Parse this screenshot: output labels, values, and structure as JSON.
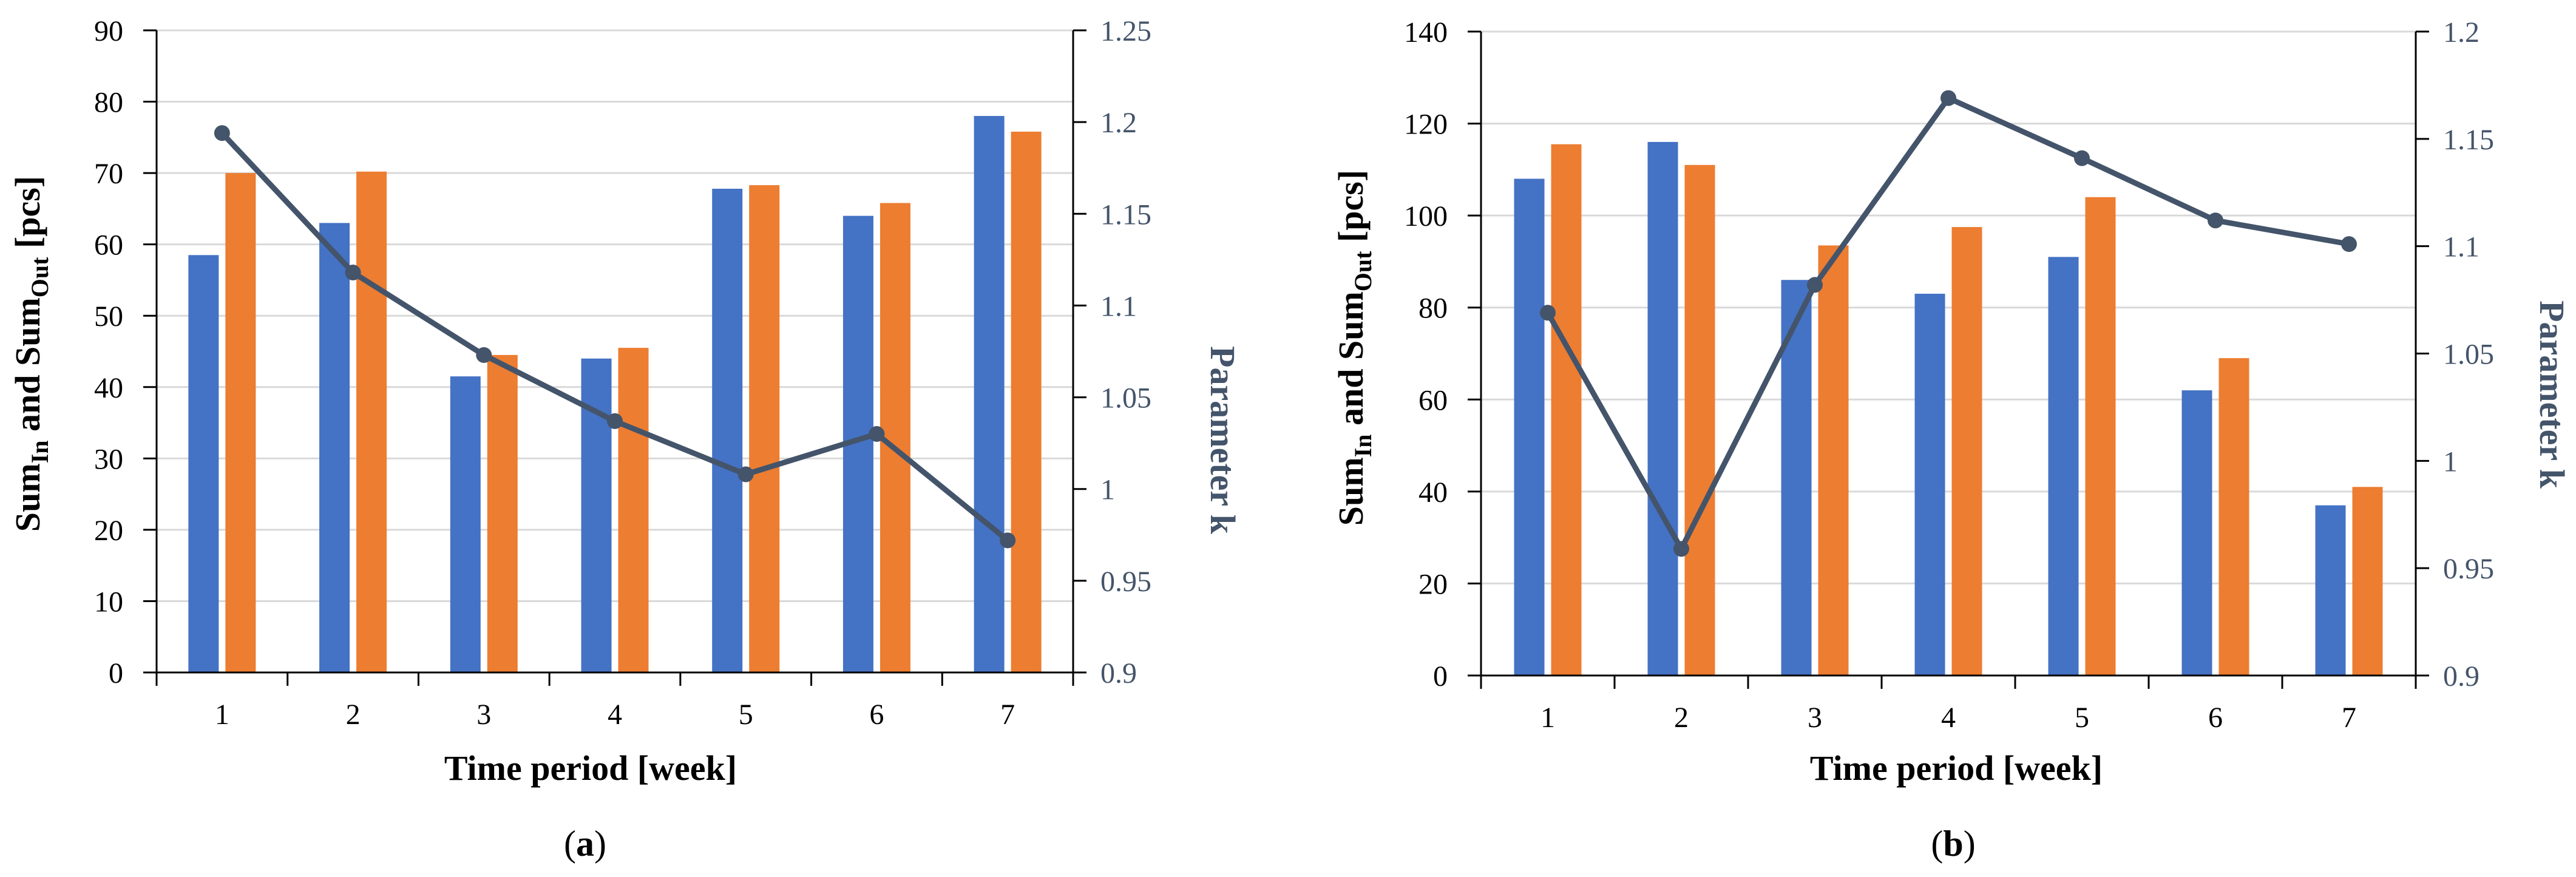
{
  "colors": {
    "in": "#4472C4",
    "out": "#ED7D31",
    "k": "#44546A",
    "grid": "#D9D9D9",
    "axis": "#000000",
    "k_axis_text": "#44546A"
  },
  "chart_data": [
    {
      "type": "bar",
      "panel": "a",
      "caption": "(a)",
      "caption_letter": "a",
      "categories": [
        "1",
        "2",
        "3",
        "4",
        "5",
        "6",
        "7"
      ],
      "series": [
        {
          "name": "Sum_In",
          "axis": "left",
          "values": [
            58.5,
            63,
            41.5,
            44,
            67.8,
            64,
            78
          ]
        },
        {
          "name": "Sum_Out",
          "axis": "left",
          "values": [
            70,
            70.2,
            44.5,
            45.5,
            68.3,
            65.8,
            75.8
          ]
        },
        {
          "name": "Parameter k",
          "axis": "right",
          "type": "line",
          "values": [
            1.194,
            1.118,
            1.073,
            1.037,
            1.008,
            1.03,
            0.972
          ]
        }
      ],
      "xlabel": "Time period [week]",
      "ylabel": {
        "a": "Sum",
        "a_sub": "In",
        "b": " and Sum",
        "b_sub": "Out",
        "c": " [pcs]"
      },
      "y2label": "Parameter k",
      "ylim": [
        0,
        90
      ],
      "yticks": [
        "0",
        "10",
        "20",
        "30",
        "40",
        "50",
        "60",
        "70",
        "80",
        "90"
      ],
      "y2lim": [
        0.9,
        1.25
      ],
      "y2ticks": [
        "0.9",
        "0.95",
        "1",
        "1.05",
        "1.1",
        "1.15",
        "1.2",
        "1.25"
      ],
      "grid": true
    },
    {
      "type": "bar",
      "panel": "b",
      "caption": "(b)",
      "caption_letter": "b",
      "categories": [
        "1",
        "2",
        "3",
        "4",
        "5",
        "6",
        "7"
      ],
      "series": [
        {
          "name": "Sum_In",
          "axis": "left",
          "values": [
            108,
            116,
            86,
            83,
            91,
            62,
            37
          ]
        },
        {
          "name": "Sum_Out",
          "axis": "left",
          "values": [
            115.5,
            111,
            93.5,
            97.5,
            104,
            69,
            41
          ]
        },
        {
          "name": "Parameter k",
          "axis": "right",
          "type": "line",
          "values": [
            1.069,
            0.959,
            1.082,
            1.169,
            1.141,
            1.112,
            1.101
          ]
        }
      ],
      "xlabel": "Time period [week]",
      "ylabel": {
        "a": "Sum",
        "a_sub": "In",
        "b": " and Sum",
        "b_sub": "Out",
        "c": " [pcs]"
      },
      "y2label": "Parameter k",
      "ylim": [
        0,
        140
      ],
      "yticks": [
        "0",
        "20",
        "40",
        "60",
        "80",
        "100",
        "120",
        "140"
      ],
      "y2lim": [
        0.9,
        1.2
      ],
      "y2ticks": [
        "0.9",
        "0.95",
        "1",
        "1.05",
        "1.1",
        "1.15",
        "1.2"
      ],
      "grid": true
    }
  ]
}
